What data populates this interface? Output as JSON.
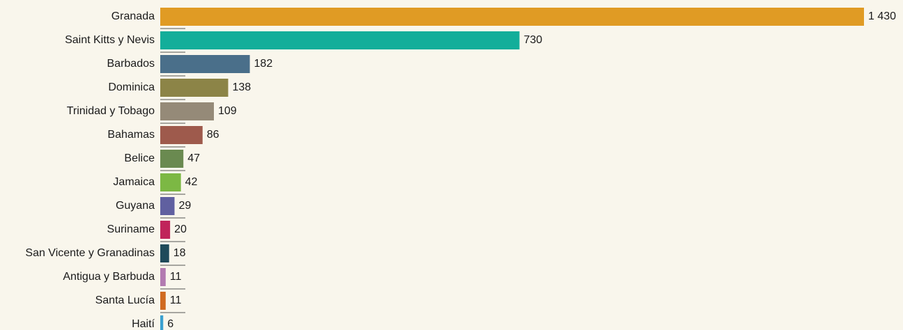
{
  "chart_data": {
    "type": "bar",
    "categories": [
      "Granada",
      "Saint Kitts y Nevis",
      "Barbados",
      "Dominica",
      "Trinidad y Tobago",
      "Bahamas",
      "Belice",
      "Jamaica",
      "Guyana",
      "Suriname",
      "San Vicente y Granadinas",
      "Antigua y Barbuda",
      "Santa Lucía",
      "Haití"
    ],
    "values": [
      1430,
      730,
      182,
      138,
      109,
      86,
      47,
      42,
      29,
      20,
      18,
      11,
      11,
      6
    ],
    "value_labels": [
      "1 430",
      "730",
      "182",
      "138",
      "109",
      "86",
      "47",
      "42",
      "29",
      "20",
      "18",
      "11",
      "11",
      "6"
    ],
    "colors": [
      "#e09b24",
      "#13ae9a",
      "#4a6f8a",
      "#8c8447",
      "#958a78",
      "#9e5a4c",
      "#6a8a50",
      "#7cb844",
      "#6060a0",
      "#c0245a",
      "#1f4a5a",
      "#b27ab0",
      "#d06a20",
      "#3aa0d0"
    ]
  }
}
